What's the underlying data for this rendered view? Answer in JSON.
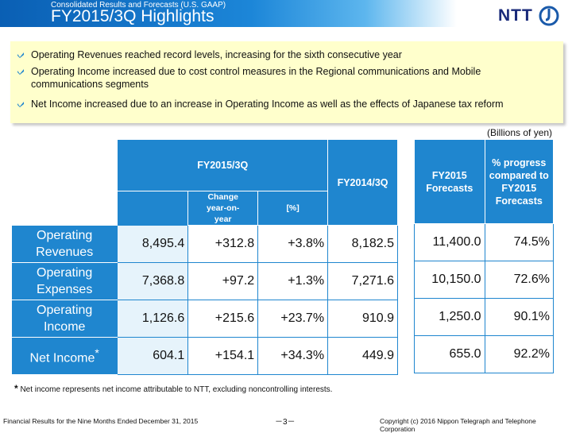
{
  "header": {
    "subtitle": "Consolidated Results and Forecasts (U.S. GAAP)",
    "title": "FY2015/3Q Highlights",
    "logo_text": "NTT"
  },
  "highlights": [
    "Operating Revenues reached record levels, increasing for the sixth consecutive year",
    "Operating Income increased due to cost control measures in the Regional communications and Mobile communications segments",
    "Net Income increased due to an increase in Operating Income as well as the effects of Japanese tax reform"
  ],
  "units": "(Billions of yen)",
  "table": {
    "col_fy2015_3q": "FY2015/3Q",
    "col_change": "Change year-on-year",
    "col_pct": "[%]",
    "col_fy2014_3q": "FY2014/3Q",
    "col_forecast": "FY2015 Forecasts",
    "col_progress": "% progress compared to FY2015 Forecasts",
    "rows": [
      {
        "label": "Operating Revenues",
        "fy2015": "8,495.4",
        "change": "+312.8",
        "pct": "+3.8%",
        "fy2014": "8,182.5",
        "forecast": "11,400.0",
        "progress": "74.5%"
      },
      {
        "label": "Operating Expenses",
        "fy2015": "7,368.8",
        "change": "+97.2",
        "pct": "+1.3%",
        "fy2014": "7,271.6",
        "forecast": "10,150.0",
        "progress": "72.6%"
      },
      {
        "label": "Operating Income",
        "fy2015": "1,126.6",
        "change": "+215.6",
        "pct": "+23.7%",
        "fy2014": "910.9",
        "forecast": "1,250.0",
        "progress": "90.1%"
      },
      {
        "label": "Net Income",
        "fy2015": "604.1",
        "change": "+154.1",
        "pct": "+34.3%",
        "fy2014": "449.9",
        "forecast": "655.0",
        "progress": "92.2%"
      }
    ],
    "asterisk": "*"
  },
  "footnote": {
    "mark": "*",
    "text": "Net income represents net income attributable to NTT, excluding noncontrolling interests."
  },
  "footer": {
    "left": "Financial Results for the Nine Months Ended December 31, 2015",
    "page": "－3－",
    "right": "Copyright (c) 2016  Nippon Telegraph and Telephone Corporation"
  },
  "colors": {
    "accent": "#1f86cf",
    "highlight_bg": "#ffffcc",
    "first_col_bg": "#e6f3fb"
  }
}
